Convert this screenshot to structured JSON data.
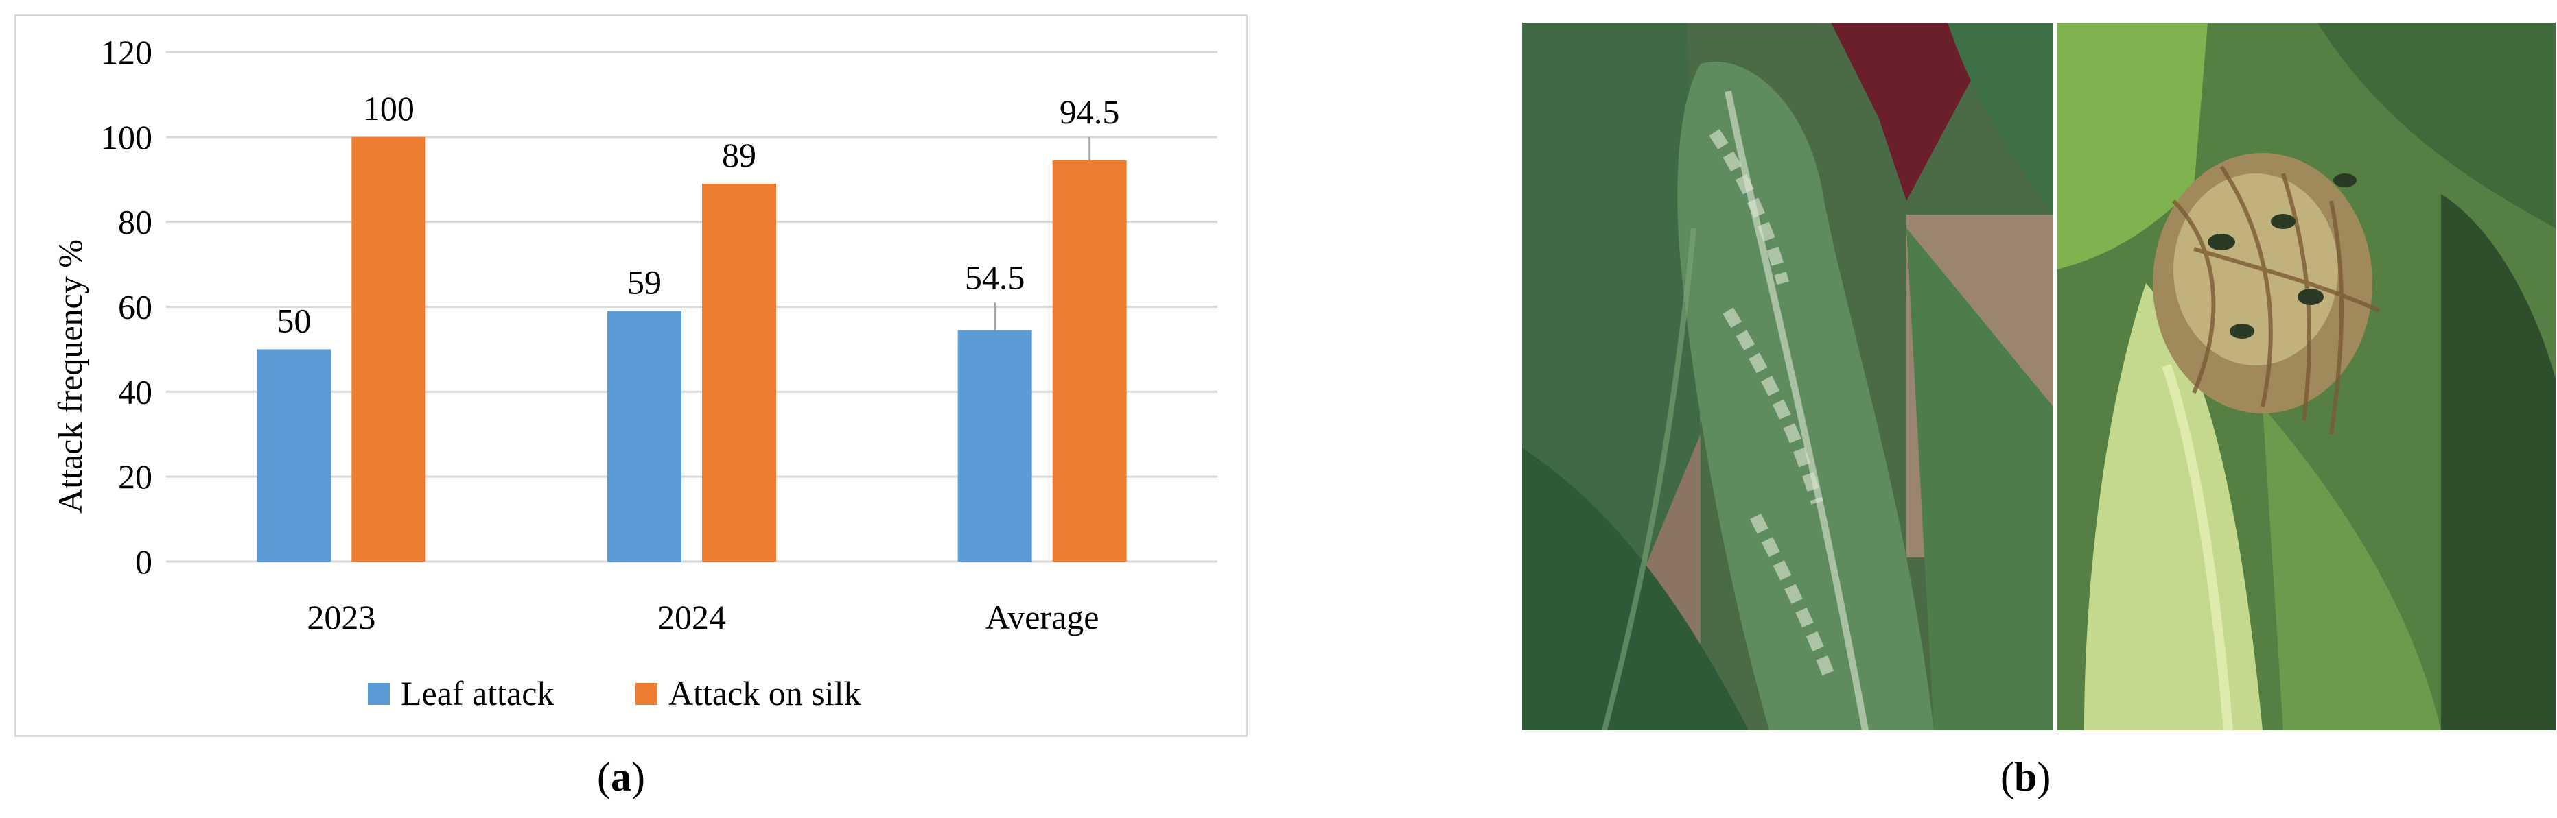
{
  "panel_a": {
    "caption_letter": "a",
    "chart_data": {
      "type": "bar",
      "title": "",
      "xlabel": "",
      "ylabel": "Attack frequency %",
      "ylim": [
        0,
        120
      ],
      "yticks": [
        "0",
        "20",
        "40",
        "60",
        "80",
        "100",
        "120"
      ],
      "categories": [
        "2023",
        "2024",
        "Average"
      ],
      "series": [
        {
          "name": "Leaf attack",
          "color": "#5b9bd5",
          "values": [
            50,
            59,
            54.5
          ],
          "value_labels": [
            "50",
            "59",
            "54.5"
          ],
          "error": [
            null,
            null,
            6.5
          ]
        },
        {
          "name": "Attack on silk",
          "color": "#ed7d31",
          "values": [
            100,
            89,
            94.5
          ],
          "value_labels": [
            "100",
            "89",
            "94.5"
          ],
          "error": [
            null,
            null,
            5.5
          ]
        }
      ],
      "grid": true,
      "gridline_color": "#d9d9d9",
      "legend_position": "bottom"
    }
  },
  "panel_b": {
    "caption_letter": "b",
    "photos": [
      {
        "subject": "maize leaf with feeding damage"
      },
      {
        "subject": "maize ear silk with beetles"
      }
    ]
  }
}
